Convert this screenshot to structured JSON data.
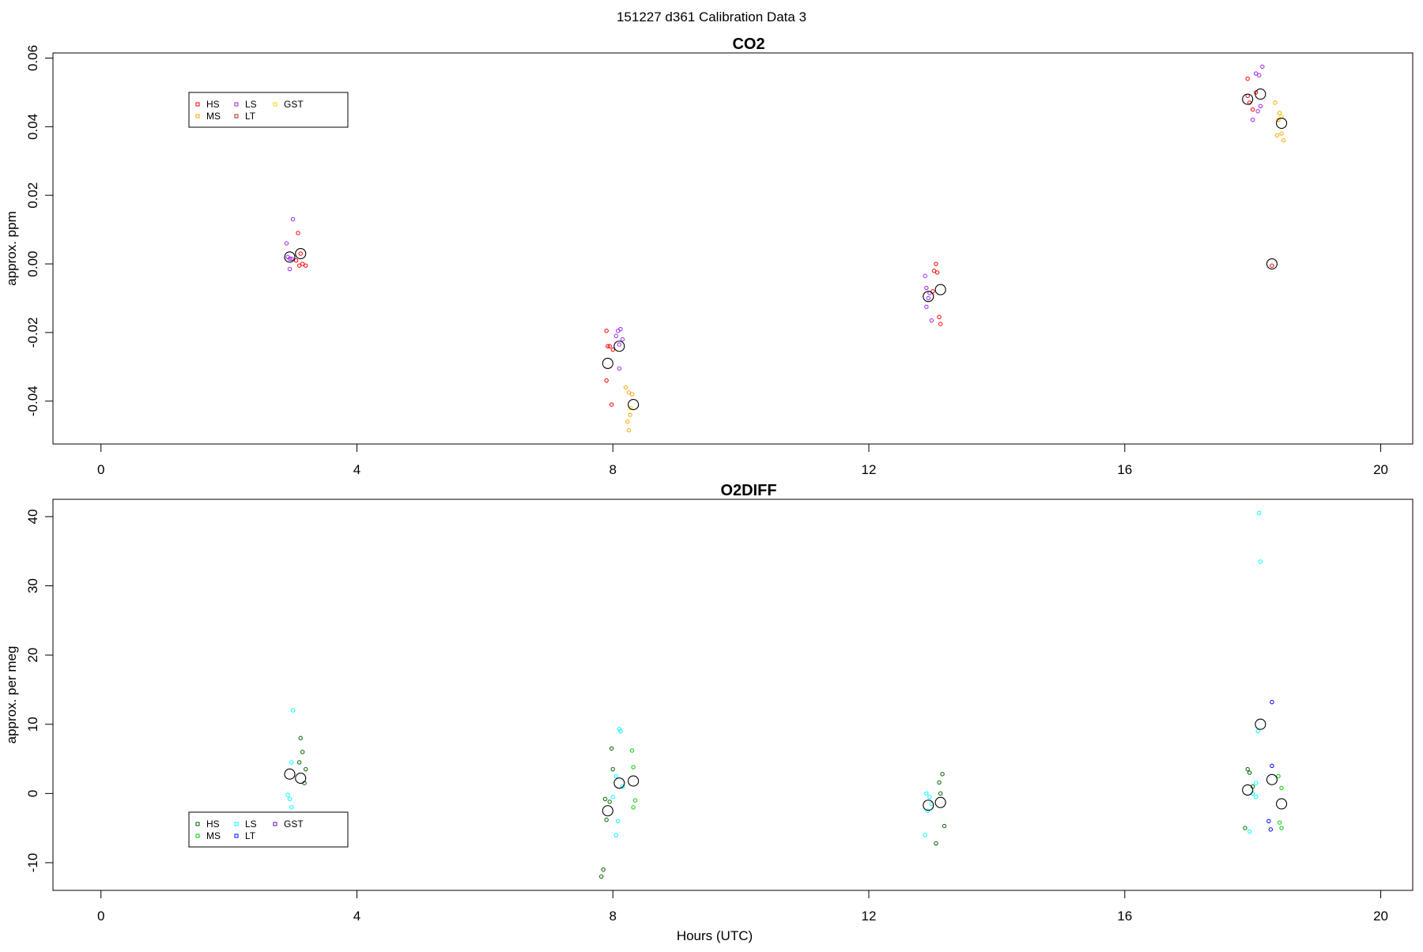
{
  "page_title": "151227   d361   Calibration Data 3",
  "chart_data": [
    {
      "type": "scatter",
      "title": "CO2",
      "xlabel": "",
      "ylabel": "approx. ppm",
      "xlim": [
        -0.75,
        20.5
      ],
      "ylim": [
        -0.0525,
        0.0615
      ],
      "xticks": [
        0,
        4,
        8,
        12,
        16,
        20
      ],
      "xtick_labels": [
        "0",
        "4",
        "8",
        "12",
        "16",
        "20"
      ],
      "yticks": [
        -0.04,
        -0.02,
        0.0,
        0.02,
        0.04,
        0.06
      ],
      "ytick_labels": [
        "-0.04",
        "-0.02",
        "0.00",
        "0.02",
        "0.04",
        "0.06"
      ],
      "grid": false,
      "legend": {
        "placement": "top-left",
        "entries": [
          {
            "name": "HS",
            "color": "#ff0000"
          },
          {
            "name": "MS",
            "color": "#ffa500"
          },
          {
            "name": "LS",
            "color": "#a020f0"
          },
          {
            "name": "LT",
            "color": "#b22222"
          },
          {
            "name": "GST",
            "color": "#ffd700"
          }
        ]
      },
      "series": [
        {
          "name": "HS",
          "color": "#ff0000",
          "points": [
            [
              3.08,
              0.009
            ],
            [
              3.12,
              0.003
            ],
            [
              3.05,
              0.001
            ],
            [
              3.15,
              0.0
            ],
            [
              3.2,
              -0.0005
            ],
            [
              3.1,
              -0.0005
            ],
            [
              7.9,
              -0.0195
            ],
            [
              7.95,
              -0.024
            ],
            [
              8.0,
              -0.025
            ],
            [
              7.9,
              -0.034
            ],
            [
              7.98,
              -0.041
            ],
            [
              7.92,
              -0.024
            ],
            [
              13.05,
              0.0
            ],
            [
              13.02,
              -0.002
            ],
            [
              13.07,
              -0.0025
            ],
            [
              13.0,
              -0.008
            ],
            [
              13.1,
              -0.0155
            ],
            [
              13.12,
              -0.0175
            ],
            [
              17.92,
              0.054
            ],
            [
              17.95,
              0.047
            ],
            [
              18.0,
              0.045
            ],
            [
              17.92,
              0.049
            ],
            [
              18.05,
              0.05
            ],
            [
              18.3,
              -0.0005
            ]
          ]
        },
        {
          "name": "MS",
          "color": "#ffa500",
          "points": [
            [
              8.2,
              -0.036
            ],
            [
              8.25,
              -0.0375
            ],
            [
              8.3,
              -0.038
            ],
            [
              8.27,
              -0.044
            ],
            [
              8.23,
              -0.046
            ],
            [
              8.25,
              -0.0485
            ],
            [
              18.35,
              0.047
            ],
            [
              18.4,
              0.042
            ],
            [
              18.45,
              0.038
            ],
            [
              18.48,
              0.036
            ],
            [
              18.38,
              0.0375
            ],
            [
              18.42,
              0.044
            ]
          ]
        },
        {
          "name": "LS",
          "color": "#a020f0",
          "points": [
            [
              2.9,
              0.006
            ],
            [
              2.92,
              0.002
            ],
            [
              2.95,
              0.0015
            ],
            [
              2.98,
              0.0015
            ],
            [
              3.0,
              0.013
            ],
            [
              2.95,
              -0.0015
            ],
            [
              8.08,
              -0.0195
            ],
            [
              8.12,
              -0.019
            ],
            [
              8.05,
              -0.021
            ],
            [
              8.1,
              -0.0235
            ],
            [
              8.15,
              -0.022
            ],
            [
              8.1,
              -0.0305
            ],
            [
              12.88,
              -0.0035
            ],
            [
              12.9,
              -0.007
            ],
            [
              12.95,
              -0.0085
            ],
            [
              12.9,
              -0.0125
            ],
            [
              12.98,
              -0.0165
            ],
            [
              12.93,
              -0.01
            ],
            [
              18.05,
              0.0555
            ],
            [
              18.1,
              0.055
            ],
            [
              18.15,
              0.0575
            ],
            [
              18.12,
              0.046
            ],
            [
              18.08,
              0.0445
            ],
            [
              18.0,
              0.042
            ]
          ]
        },
        {
          "name": "LT",
          "color": "#b22222",
          "points": []
        },
        {
          "name": "GST",
          "color": "#ffd700",
          "points": [
            [
              8.28,
              -0.042
            ],
            [
              18.45,
              0.043
            ]
          ]
        },
        {
          "name": "mean",
          "color": "#000000",
          "points": [
            [
              2.95,
              0.002
            ],
            [
              3.12,
              0.003
            ],
            [
              7.92,
              -0.029
            ],
            [
              8.1,
              -0.024
            ],
            [
              8.32,
              -0.041
            ],
            [
              12.93,
              -0.0095
            ],
            [
              13.12,
              -0.0075
            ],
            [
              17.92,
              0.048
            ],
            [
              18.12,
              0.0495
            ],
            [
              18.45,
              0.041
            ],
            [
              18.3,
              0.0
            ]
          ]
        }
      ]
    },
    {
      "type": "scatter",
      "title": "O2DIFF",
      "xlabel": "Hours (UTC)",
      "ylabel": "approx. per meg",
      "xlim": [
        -0.75,
        20.5
      ],
      "ylim": [
        -14,
        42.5
      ],
      "xticks": [
        0,
        4,
        8,
        12,
        16,
        20
      ],
      "xtick_labels": [
        "0",
        "4",
        "8",
        "12",
        "16",
        "20"
      ],
      "yticks": [
        -10,
        0,
        10,
        20,
        30,
        40
      ],
      "ytick_labels": [
        "-10",
        "0",
        "10",
        "20",
        "30",
        "40"
      ],
      "grid": false,
      "legend": {
        "placement": "bottom-left",
        "entries": [
          {
            "name": "HS",
            "color": "#006400"
          },
          {
            "name": "MS",
            "color": "#00cc00"
          },
          {
            "name": "LS",
            "color": "#00ffff"
          },
          {
            "name": "LT",
            "color": "#0000ff"
          },
          {
            "name": "GST",
            "color": "#6a0dad"
          }
        ]
      },
      "series": [
        {
          "name": "HS",
          "color": "#006400",
          "points": [
            [
              3.12,
              8.0
            ],
            [
              3.15,
              6.0
            ],
            [
              3.1,
              4.5
            ],
            [
              3.2,
              3.5
            ],
            [
              3.18,
              1.5
            ],
            [
              7.88,
              -0.8
            ],
            [
              7.95,
              -1.2
            ],
            [
              7.9,
              -3.8
            ],
            [
              7.85,
              -11.0
            ],
            [
              7.82,
              -12.0
            ],
            [
              8.0,
              3.5
            ],
            [
              7.98,
              6.5
            ],
            [
              13.15,
              2.8
            ],
            [
              13.1,
              1.6
            ],
            [
              13.12,
              0.0
            ],
            [
              13.18,
              -4.7
            ],
            [
              13.05,
              -7.2
            ],
            [
              17.92,
              3.5
            ],
            [
              17.95,
              3.0
            ],
            [
              18.0,
              1.0
            ],
            [
              17.88,
              -5.0
            ]
          ]
        },
        {
          "name": "MS",
          "color": "#00cc00",
          "points": [
            [
              8.3,
              6.2
            ],
            [
              8.32,
              3.8
            ],
            [
              8.35,
              -1.0
            ],
            [
              8.32,
              -2.0
            ],
            [
              18.4,
              2.5
            ],
            [
              18.45,
              0.8
            ],
            [
              18.42,
              -4.2
            ],
            [
              18.45,
              -5.0
            ]
          ]
        },
        {
          "name": "LS",
          "color": "#00ffff",
          "points": [
            [
              3.0,
              12.0
            ],
            [
              2.98,
              4.5
            ],
            [
              2.92,
              -0.2
            ],
            [
              2.95,
              -0.8
            ],
            [
              2.98,
              -2.0
            ],
            [
              8.1,
              9.3
            ],
            [
              8.12,
              9.0
            ],
            [
              8.05,
              2.5
            ],
            [
              8.15,
              1.0
            ],
            [
              8.0,
              -0.5
            ],
            [
              8.08,
              -4.0
            ],
            [
              8.05,
              -6.0
            ],
            [
              12.9,
              0.0
            ],
            [
              12.95,
              -0.5
            ],
            [
              12.98,
              -1.5
            ],
            [
              12.92,
              -2.5
            ],
            [
              12.88,
              -6.0
            ],
            [
              18.1,
              40.5
            ],
            [
              18.12,
              33.5
            ],
            [
              18.08,
              9.0
            ],
            [
              18.05,
              1.5
            ],
            [
              18.0,
              0.0
            ],
            [
              18.05,
              -0.5
            ],
            [
              17.95,
              -5.5
            ]
          ]
        },
        {
          "name": "LT",
          "color": "#0000ff",
          "points": [
            [
              18.3,
              13.2
            ],
            [
              18.3,
              4.0
            ],
            [
              18.25,
              -4.0
            ],
            [
              18.28,
              -5.2
            ]
          ]
        },
        {
          "name": "GST",
          "color": "#6a0dad",
          "points": []
        },
        {
          "name": "mean",
          "color": "#000000",
          "points": [
            [
              2.95,
              2.8
            ],
            [
              3.12,
              2.2
            ],
            [
              7.92,
              -2.5
            ],
            [
              8.1,
              1.5
            ],
            [
              8.32,
              1.8
            ],
            [
              12.93,
              -1.7
            ],
            [
              13.12,
              -1.3
            ],
            [
              17.92,
              0.5
            ],
            [
              18.12,
              10.0
            ],
            [
              18.3,
              2.0
            ],
            [
              18.45,
              -1.5
            ]
          ]
        }
      ]
    }
  ]
}
